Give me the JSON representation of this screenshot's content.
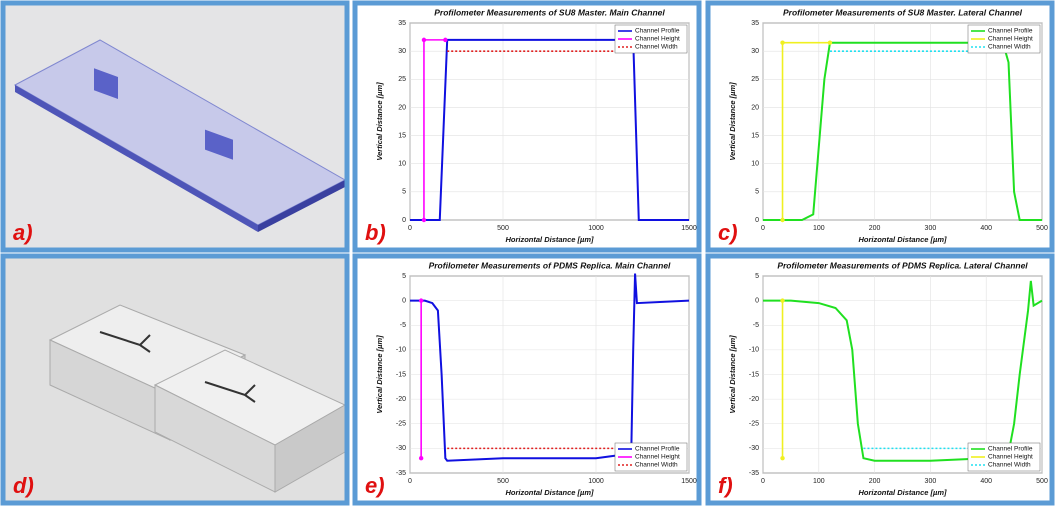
{
  "panel_labels": [
    "a)",
    "b)",
    "c)",
    "d)",
    "e)",
    "f)"
  ],
  "chart_data": [
    {
      "type": "line",
      "title": "Profilometer Measurements of SU8 Master. Main Channel",
      "x_label": "Horizontal Distance [µm]",
      "y_label": "Vertical Distance [µm]",
      "xlim": [
        0,
        1500
      ],
      "xticks": [
        0,
        500,
        1000,
        1500
      ],
      "ylim": [
        0,
        35
      ],
      "yticks": [
        0,
        5,
        10,
        15,
        20,
        25,
        30,
        35
      ],
      "legend": "upper right",
      "series": [
        {
          "name": "Channel Profile",
          "color": "#1010e0",
          "style": "solid",
          "x": [
            0,
            160,
            200,
            1200,
            1230,
            1500
          ],
          "values": [
            0,
            0,
            32,
            32,
            0,
            0
          ]
        },
        {
          "name": "Channel Height",
          "color": "#ff00ff",
          "style": "marker",
          "x": [
            75,
            75,
            190
          ],
          "values": [
            0,
            32,
            32
          ]
        },
        {
          "name": "Channel Width",
          "color": "#e02020",
          "style": "dotted",
          "x": [
            200,
            1200
          ],
          "values": [
            30,
            30
          ]
        }
      ]
    },
    {
      "type": "line",
      "title": "Profilometer Measurements of SU8 Master. Lateral Channel",
      "x_label": "Horizontal Distance [µm]",
      "y_label": "Vertical Distance [µm]",
      "xlim": [
        0,
        500
      ],
      "xticks": [
        0,
        100,
        200,
        300,
        400,
        500
      ],
      "ylim": [
        0,
        35
      ],
      "yticks": [
        0,
        5,
        10,
        15,
        20,
        25,
        30,
        35
      ],
      "legend": "upper right",
      "series": [
        {
          "name": "Channel Profile",
          "color": "#20e020",
          "style": "solid",
          "x": [
            0,
            70,
            90,
            110,
            120,
            430,
            440,
            450,
            460,
            500
          ],
          "values": [
            0,
            0,
            1,
            25,
            31.5,
            31.5,
            28,
            5,
            0,
            0
          ]
        },
        {
          "name": "Channel Height",
          "color": "#f0f020",
          "style": "marker",
          "x": [
            35,
            35,
            120
          ],
          "values": [
            0,
            31.5,
            31.5
          ]
        },
        {
          "name": "Channel Width",
          "color": "#20e0f0",
          "style": "dotted",
          "x": [
            120,
            430
          ],
          "values": [
            30,
            30
          ]
        }
      ]
    },
    {
      "type": "line",
      "title": "Profilometer Measurements of PDMS Replica. Main Channel",
      "x_label": "Horizontal Distance [µm]",
      "y_label": "Vertical Distance [µm]",
      "xlim": [
        0,
        1500
      ],
      "xticks": [
        0,
        500,
        1000,
        1500
      ],
      "ylim": [
        -35,
        5
      ],
      "yticks": [
        -35,
        -30,
        -25,
        -20,
        -15,
        -10,
        -5,
        0,
        5
      ],
      "legend": "lower right",
      "series": [
        {
          "name": "Channel Profile",
          "color": "#1010e0",
          "style": "solid",
          "x": [
            0,
            80,
            120,
            150,
            170,
            190,
            200,
            500,
            1000,
            1100,
            1150,
            1190,
            1200,
            1210,
            1220,
            1500
          ],
          "values": [
            0,
            0,
            -0.5,
            -2,
            -15,
            -32,
            -32.5,
            -32,
            -32,
            -31.5,
            -31,
            -30,
            -10,
            5.5,
            -0.5,
            0
          ]
        },
        {
          "name": "Channel Height",
          "color": "#ff00ff",
          "style": "marker",
          "x": [
            60,
            60
          ],
          "values": [
            0,
            -32
          ]
        },
        {
          "name": "Channel Width",
          "color": "#e02020",
          "style": "dotted",
          "x": [
            200,
            1200
          ],
          "values": [
            -30,
            -30
          ]
        }
      ]
    },
    {
      "type": "line",
      "title": "Profilometer Measurements of PDMS Replica. Lateral Channel",
      "x_label": "Horizontal Distance [µm]",
      "y_label": "Vertical Distance [µm]",
      "xlim": [
        0,
        500
      ],
      "xticks": [
        0,
        100,
        200,
        300,
        400,
        500
      ],
      "ylim": [
        -35,
        5
      ],
      "yticks": [
        -35,
        -30,
        -25,
        -20,
        -15,
        -10,
        -5,
        0,
        5
      ],
      "legend": "lower right",
      "series": [
        {
          "name": "Channel Profile",
          "color": "#20e020",
          "style": "solid",
          "x": [
            0,
            50,
            100,
            130,
            150,
            160,
            170,
            180,
            200,
            300,
            400,
            440,
            450,
            460,
            475,
            480,
            485,
            500
          ],
          "values": [
            0,
            0,
            -0.5,
            -1.5,
            -4,
            -10,
            -25,
            -32,
            -32.5,
            -32.5,
            -32,
            -31,
            -25,
            -15,
            -2,
            4,
            -1,
            0
          ]
        },
        {
          "name": "Channel Height",
          "color": "#f0f020",
          "style": "marker",
          "x": [
            35,
            35
          ],
          "values": [
            0,
            -32
          ]
        },
        {
          "name": "Channel Width",
          "color": "#20e0f0",
          "style": "dotted",
          "x": [
            180,
            440
          ],
          "values": [
            -30,
            -30
          ]
        }
      ]
    }
  ]
}
